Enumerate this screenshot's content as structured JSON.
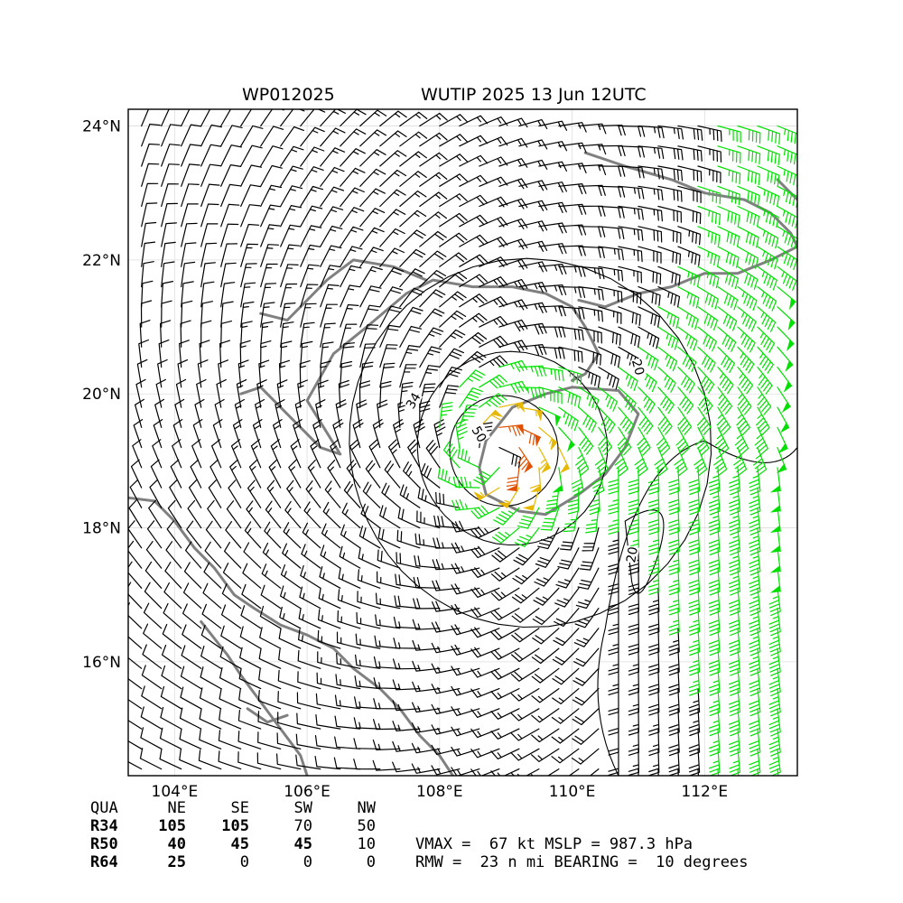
{
  "title": {
    "left": "WP012025",
    "right": "WUTIP 2025 13 Jun 12UTC"
  },
  "map": {
    "lon_range": [
      103.3,
      113.4
    ],
    "lat_range": [
      14.3,
      24.25
    ],
    "lon_ticks": [
      {
        "value": 104,
        "label": "104°E"
      },
      {
        "value": 106,
        "label": "106°E"
      },
      {
        "value": 108,
        "label": "108°E"
      },
      {
        "value": 110,
        "label": "110°E"
      },
      {
        "value": 112,
        "label": "112°E"
      }
    ],
    "lat_ticks": [
      {
        "value": 16,
        "label": "16°N"
      },
      {
        "value": 18,
        "label": "18°N"
      },
      {
        "value": 20,
        "label": "20°N"
      },
      {
        "value": 22,
        "label": "22°N"
      },
      {
        "value": 24,
        "label": "24°N"
      }
    ],
    "storm_center": {
      "lon": 108.8,
      "lat": 19.1
    },
    "wind_color_scale": [
      {
        "min_kt": 0,
        "max_kt": 34,
        "color": "#000000"
      },
      {
        "min_kt": 34,
        "max_kt": 50,
        "color": "#00e000"
      },
      {
        "min_kt": 50,
        "max_kt": 64,
        "color": "#e6b800"
      },
      {
        "min_kt": 64,
        "max_kt": 999,
        "color": "#e05000"
      }
    ],
    "coast_color": "#808080",
    "contour_labels": [
      {
        "text": "34",
        "lon": 107.6,
        "lat": 19.9,
        "rotate": -60
      },
      {
        "text": "50",
        "lon": 108.6,
        "lat": 19.4,
        "rotate": 60
      },
      {
        "text": "20",
        "lon": 111.0,
        "lat": 20.4,
        "rotate": 75
      },
      {
        "text": "20",
        "lon": 110.9,
        "lat": 17.6,
        "rotate": -80
      }
    ]
  },
  "wind_radii": {
    "header": [
      "QUA",
      "NE",
      "SE",
      "SW",
      "NW"
    ],
    "rows": [
      {
        "label": "R34",
        "values": [
          "105",
          "105",
          "70",
          "50"
        ]
      },
      {
        "label": "R50",
        "values": [
          "40",
          "45",
          "45",
          "10"
        ]
      },
      {
        "label": "R64",
        "values": [
          "25",
          "0",
          "0",
          "0"
        ]
      }
    ]
  },
  "summary": {
    "line1": "VMAX =  67 kt MSLP = 987.3 hPa",
    "line2": "RMW =  23 n mi BEARING =  10 degrees"
  }
}
